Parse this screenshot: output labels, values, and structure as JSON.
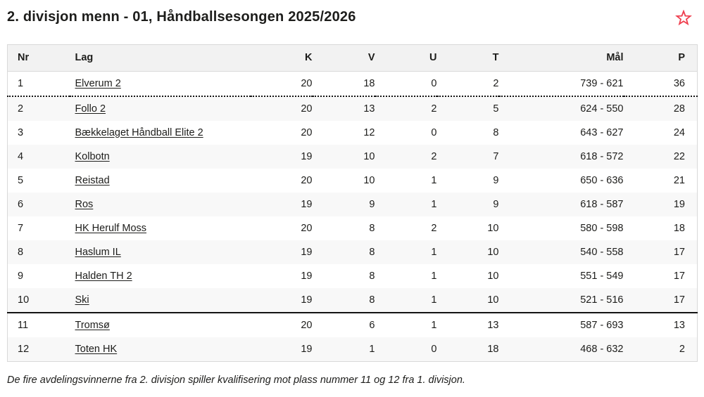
{
  "page": {
    "title": "2. divisjon menn - 01, Håndballsesongen 2025/2026",
    "footnote": "De fire avdelingsvinnerne fra 2. divisjon spiller kvalifisering mot plass nummer 11 og 12 fra 1. divisjon."
  },
  "icons": {
    "favorite": "star-outline-icon"
  },
  "colors": {
    "accent": "#ef3e4e",
    "header_bg": "#f2f2f2",
    "stripe_bg": "#f8f8f8",
    "table_border": "#d9d9d9",
    "separator": "#141414",
    "text": "#1d1d1b"
  },
  "table": {
    "columns": [
      {
        "key": "nr",
        "label": "Nr",
        "align": "left"
      },
      {
        "key": "lag",
        "label": "Lag",
        "align": "left"
      },
      {
        "key": "k",
        "label": "K",
        "align": "right"
      },
      {
        "key": "v",
        "label": "V",
        "align": "right"
      },
      {
        "key": "u",
        "label": "U",
        "align": "right"
      },
      {
        "key": "t",
        "label": "T",
        "align": "right"
      },
      {
        "key": "maal",
        "label": "Mål",
        "align": "right"
      },
      {
        "key": "p",
        "label": "P",
        "align": "right"
      }
    ],
    "rows": [
      {
        "nr": "1",
        "lag": "Elverum 2",
        "k": "20",
        "v": "18",
        "u": "0",
        "t": "2",
        "maal": "739 - 621",
        "p": "36",
        "separator_after": "dotted"
      },
      {
        "nr": "2",
        "lag": "Follo 2",
        "k": "20",
        "v": "13",
        "u": "2",
        "t": "5",
        "maal": "624 - 550",
        "p": "28",
        "separator_after": ""
      },
      {
        "nr": "3",
        "lag": "Bækkelaget Håndball Elite 2",
        "k": "20",
        "v": "12",
        "u": "0",
        "t": "8",
        "maal": "643 - 627",
        "p": "24",
        "separator_after": ""
      },
      {
        "nr": "4",
        "lag": "Kolbotn",
        "k": "19",
        "v": "10",
        "u": "2",
        "t": "7",
        "maal": "618 - 572",
        "p": "22",
        "separator_after": ""
      },
      {
        "nr": "5",
        "lag": "Reistad",
        "k": "20",
        "v": "10",
        "u": "1",
        "t": "9",
        "maal": "650 - 636",
        "p": "21",
        "separator_after": ""
      },
      {
        "nr": "6",
        "lag": "Ros",
        "k": "19",
        "v": "9",
        "u": "1",
        "t": "9",
        "maal": "618 - 587",
        "p": "19",
        "separator_after": ""
      },
      {
        "nr": "7",
        "lag": "HK Herulf Moss",
        "k": "20",
        "v": "8",
        "u": "2",
        "t": "10",
        "maal": "580 - 598",
        "p": "18",
        "separator_after": ""
      },
      {
        "nr": "8",
        "lag": "Haslum IL",
        "k": "19",
        "v": "8",
        "u": "1",
        "t": "10",
        "maal": "540 - 558",
        "p": "17",
        "separator_after": ""
      },
      {
        "nr": "9",
        "lag": "Halden TH 2",
        "k": "19",
        "v": "8",
        "u": "1",
        "t": "10",
        "maal": "551 - 549",
        "p": "17",
        "separator_after": ""
      },
      {
        "nr": "10",
        "lag": "Ski",
        "k": "19",
        "v": "8",
        "u": "1",
        "t": "10",
        "maal": "521 - 516",
        "p": "17",
        "separator_after": "solid"
      },
      {
        "nr": "11",
        "lag": "Tromsø",
        "k": "20",
        "v": "6",
        "u": "1",
        "t": "13",
        "maal": "587 - 693",
        "p": "13",
        "separator_after": ""
      },
      {
        "nr": "12",
        "lag": "Toten HK",
        "k": "19",
        "v": "1",
        "u": "0",
        "t": "18",
        "maal": "468 - 632",
        "p": "2",
        "separator_after": ""
      }
    ]
  }
}
